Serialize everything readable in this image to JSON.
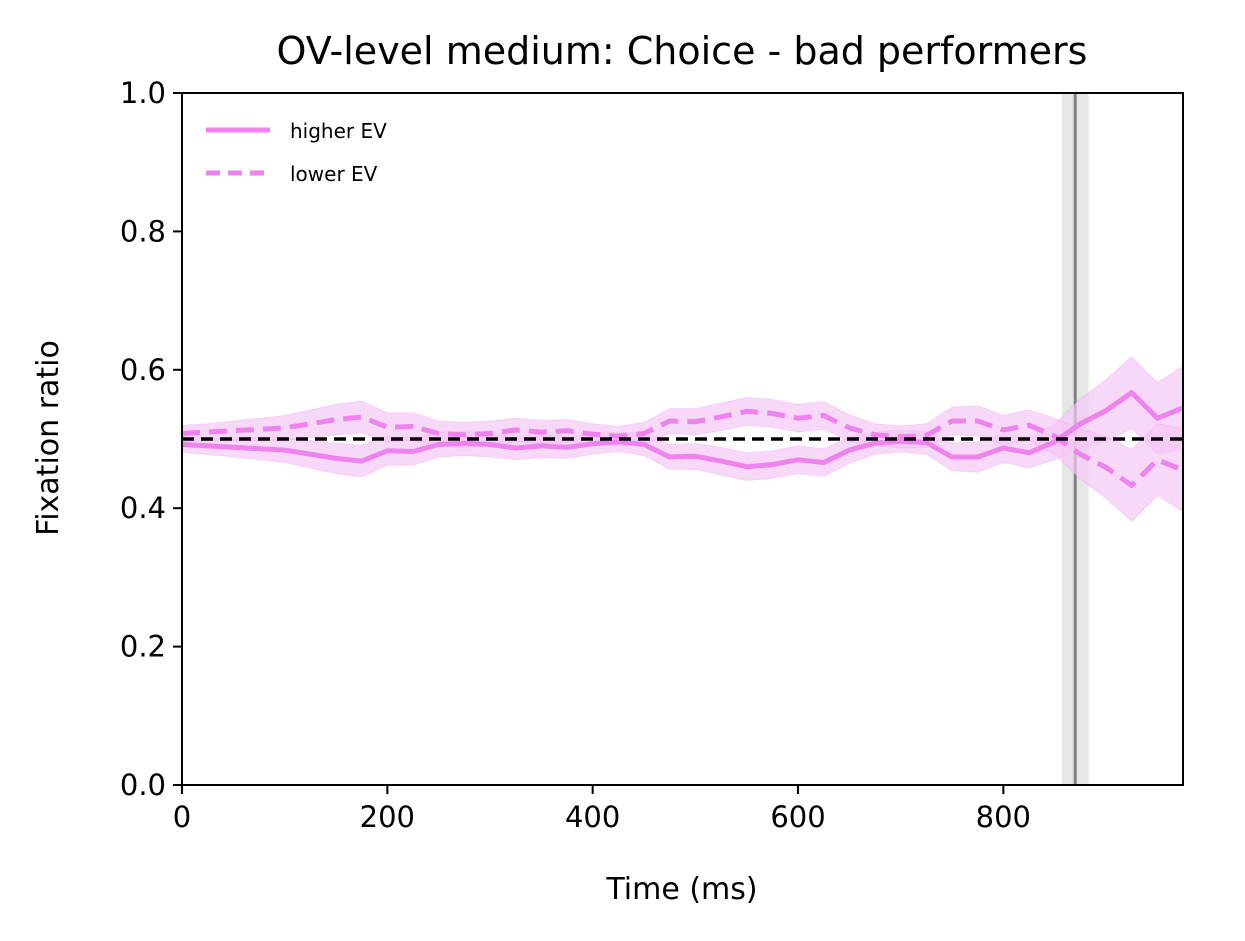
{
  "chart_data": {
    "type": "line",
    "title": "OV-level medium: Choice - bad performers",
    "xlabel": "Time (ms)",
    "ylabel": "Fixation ratio",
    "xlim": [
      0,
      975
    ],
    "ylim": [
      0.0,
      1.0
    ],
    "xticks": [
      0,
      200,
      400,
      600,
      800
    ],
    "xtick_labels": [
      "0",
      "200",
      "400",
      "600",
      "800"
    ],
    "yticks": [
      0.0,
      0.2,
      0.4,
      0.6,
      0.8,
      1.0
    ],
    "ytick_labels": [
      "0.0",
      "0.2",
      "0.4",
      "0.6",
      "0.8",
      "1.0"
    ],
    "grid": false,
    "legend_position": "top-left",
    "series_color": "#ee82ee",
    "band_color": "#f5c8f5",
    "x": [
      0,
      25,
      50,
      75,
      100,
      125,
      150,
      175,
      200,
      225,
      250,
      275,
      300,
      325,
      350,
      375,
      400,
      425,
      450,
      475,
      500,
      525,
      550,
      575,
      600,
      625,
      650,
      675,
      700,
      725,
      750,
      775,
      800,
      825,
      850,
      875,
      900,
      925,
      950,
      975
    ],
    "series": [
      {
        "name": "higher EV",
        "style": "solid",
        "values": [
          0.492,
          0.49,
          0.488,
          0.486,
          0.484,
          0.478,
          0.472,
          0.468,
          0.483,
          0.482,
          0.492,
          0.494,
          0.492,
          0.487,
          0.49,
          0.488,
          0.493,
          0.496,
          0.492,
          0.474,
          0.475,
          0.468,
          0.46,
          0.463,
          0.47,
          0.466,
          0.484,
          0.494,
          0.497,
          0.495,
          0.474,
          0.474,
          0.487,
          0.48,
          0.496,
          0.522,
          0.541,
          0.567,
          0.53,
          0.545
        ],
        "ci_lower": [
          0.48,
          0.478,
          0.474,
          0.47,
          0.466,
          0.458,
          0.45,
          0.445,
          0.462,
          0.462,
          0.474,
          0.476,
          0.474,
          0.47,
          0.473,
          0.472,
          0.478,
          0.482,
          0.476,
          0.456,
          0.456,
          0.448,
          0.44,
          0.443,
          0.45,
          0.446,
          0.465,
          0.478,
          0.481,
          0.478,
          0.454,
          0.452,
          0.466,
          0.458,
          0.47,
          0.486,
          0.496,
          0.515,
          0.478,
          0.485
        ],
        "ci_upper": [
          0.504,
          0.502,
          0.502,
          0.502,
          0.502,
          0.498,
          0.494,
          0.491,
          0.504,
          0.502,
          0.51,
          0.512,
          0.51,
          0.504,
          0.507,
          0.504,
          0.508,
          0.51,
          0.508,
          0.492,
          0.494,
          0.488,
          0.48,
          0.483,
          0.49,
          0.486,
          0.503,
          0.51,
          0.513,
          0.512,
          0.494,
          0.496,
          0.508,
          0.502,
          0.522,
          0.558,
          0.586,
          0.619,
          0.582,
          0.605
        ]
      },
      {
        "name": "lower EV",
        "style": "dashed",
        "values": [
          0.508,
          0.51,
          0.512,
          0.514,
          0.516,
          0.522,
          0.528,
          0.532,
          0.517,
          0.518,
          0.508,
          0.506,
          0.508,
          0.513,
          0.51,
          0.512,
          0.507,
          0.504,
          0.508,
          0.526,
          0.525,
          0.532,
          0.54,
          0.537,
          0.53,
          0.534,
          0.516,
          0.506,
          0.503,
          0.505,
          0.526,
          0.526,
          0.513,
          0.52,
          0.504,
          0.478,
          0.459,
          0.433,
          0.47,
          0.455
        ],
        "ci_lower": [
          0.496,
          0.498,
          0.498,
          0.498,
          0.498,
          0.502,
          0.506,
          0.509,
          0.496,
          0.498,
          0.49,
          0.488,
          0.49,
          0.496,
          0.493,
          0.496,
          0.492,
          0.49,
          0.492,
          0.508,
          0.506,
          0.512,
          0.52,
          0.517,
          0.51,
          0.514,
          0.497,
          0.49,
          0.487,
          0.488,
          0.506,
          0.504,
          0.492,
          0.498,
          0.478,
          0.442,
          0.414,
          0.381,
          0.418,
          0.395
        ],
        "ci_upper": [
          0.52,
          0.522,
          0.526,
          0.53,
          0.534,
          0.542,
          0.55,
          0.555,
          0.538,
          0.538,
          0.526,
          0.524,
          0.526,
          0.53,
          0.527,
          0.528,
          0.522,
          0.518,
          0.524,
          0.544,
          0.544,
          0.552,
          0.56,
          0.557,
          0.55,
          0.554,
          0.535,
          0.522,
          0.519,
          0.522,
          0.546,
          0.548,
          0.534,
          0.542,
          0.53,
          0.514,
          0.504,
          0.485,
          0.522,
          0.515
        ]
      }
    ],
    "reference_line": {
      "y": 0.5,
      "style": "dashed",
      "color": "#000000"
    },
    "vertical_marker": {
      "x": 870,
      "band": [
        857,
        883
      ],
      "line_color": "#808080",
      "band_color": "#e6e6e6"
    }
  }
}
